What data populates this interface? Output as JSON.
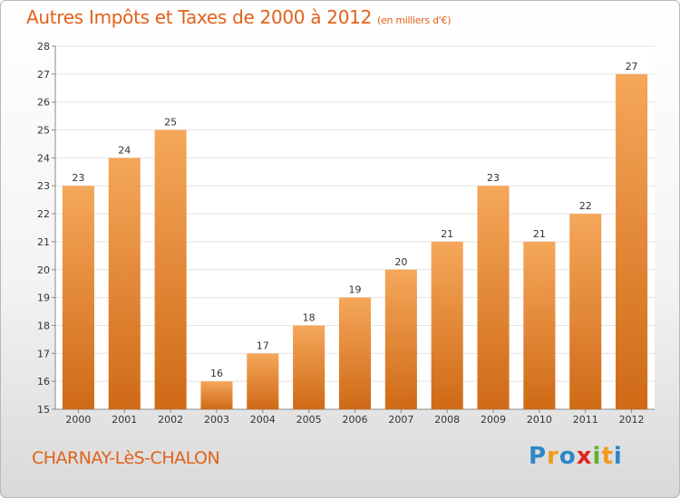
{
  "title": "Autres Impôts et Taxes de 2000 à 2012",
  "subtitle": "(en milliers d'€)",
  "place": "CHARNAY-LèS-CHALON",
  "logo": {
    "letters": [
      "P",
      "r",
      "o",
      "x",
      "i",
      "t",
      "i"
    ],
    "colors": [
      "#2e86c8",
      "#f29a1d",
      "#2e86c8",
      "#e0261d",
      "#5fb233",
      "#f29a1d",
      "#2e86c8"
    ]
  },
  "colors": {
    "bar_top": "#f5a75a",
    "bar_bottom": "#cf6a16",
    "grid": "#e3e3e3",
    "axis": "#888888",
    "accent": "#e0621a"
  },
  "chart_data": {
    "type": "bar",
    "categories": [
      "2000",
      "2001",
      "2002",
      "2003",
      "2004",
      "2005",
      "2006",
      "2007",
      "2008",
      "2009",
      "2010",
      "2011",
      "2012"
    ],
    "values": [
      23,
      24,
      25,
      16,
      17,
      18,
      19,
      20,
      21,
      23,
      21,
      22,
      27
    ],
    "value_labels": [
      "23",
      "24",
      "25",
      "16",
      "17",
      "18",
      "19",
      "20",
      "21",
      "23",
      "21",
      "22",
      "27"
    ],
    "yticks": [
      "15",
      "16",
      "17",
      "18",
      "19",
      "20",
      "21",
      "22",
      "23",
      "24",
      "25",
      "26",
      "27",
      "28"
    ],
    "ylim": [
      15,
      28
    ],
    "grid": true,
    "legend": "none"
  }
}
